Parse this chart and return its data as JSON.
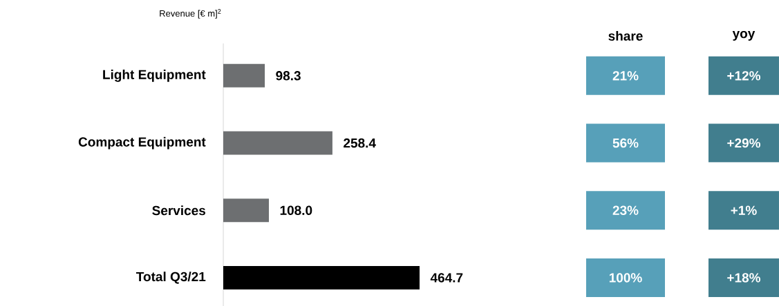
{
  "chart_data": {
    "type": "bar",
    "orientation": "horizontal",
    "title": "Revenue [€ m]$^{2}$",
    "categories": [
      "Light Equipment",
      "Compact Equipment",
      "Services",
      "Total Q3/21"
    ],
    "values": [
      98.3,
      258.4,
      108.0,
      464.7
    ],
    "colors": [
      "#6d6f71",
      "#6d6f71",
      "#6d6f71",
      "#000000"
    ],
    "value_labels": [
      "98.3",
      "258.4",
      "108.0",
      "464.7"
    ],
    "annotations": [
      "share",
      "yoy",
      "21%",
      "+12%",
      "56%",
      "+29%",
      "23%",
      "+1%",
      "100%",
      "+18%"
    ]
  }
}
